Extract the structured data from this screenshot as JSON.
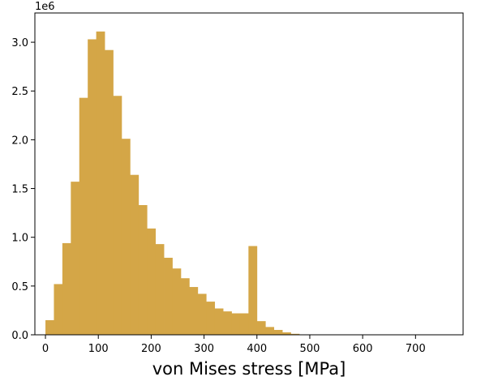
{
  "chart_data": {
    "type": "bar",
    "subtype": "histogram",
    "xlabel": "von Mises stress [MPa]",
    "ylabel": "",
    "y_offset_label": "1e6",
    "xlim": [
      -20,
      790
    ],
    "ylim": [
      0,
      3.3
    ],
    "xticks": [
      0,
      100,
      200,
      300,
      400,
      500,
      600,
      700
    ],
    "yticks": [
      0.0,
      0.5,
      1.0,
      1.5,
      2.0,
      2.5,
      3.0
    ],
    "bin_width": 16,
    "bins_start": [
      0,
      16,
      32,
      48,
      64,
      80,
      96,
      112,
      128,
      144,
      160,
      176,
      192,
      208,
      224,
      240,
      256,
      272,
      288,
      304,
      320,
      336,
      352,
      368,
      384,
      400,
      416,
      432,
      448,
      464,
      480
    ],
    "values": [
      0.15,
      0.52,
      0.94,
      1.57,
      2.43,
      3.03,
      3.11,
      2.92,
      2.45,
      2.01,
      1.64,
      1.33,
      1.09,
      0.93,
      0.79,
      0.68,
      0.58,
      0.49,
      0.42,
      0.34,
      0.27,
      0.24,
      0.22,
      0.22,
      0.91,
      0.14,
      0.08,
      0.05,
      0.025,
      0.01,
      0.003
    ],
    "values_unit": "1e6",
    "grid": false,
    "color": "#d4a647"
  }
}
